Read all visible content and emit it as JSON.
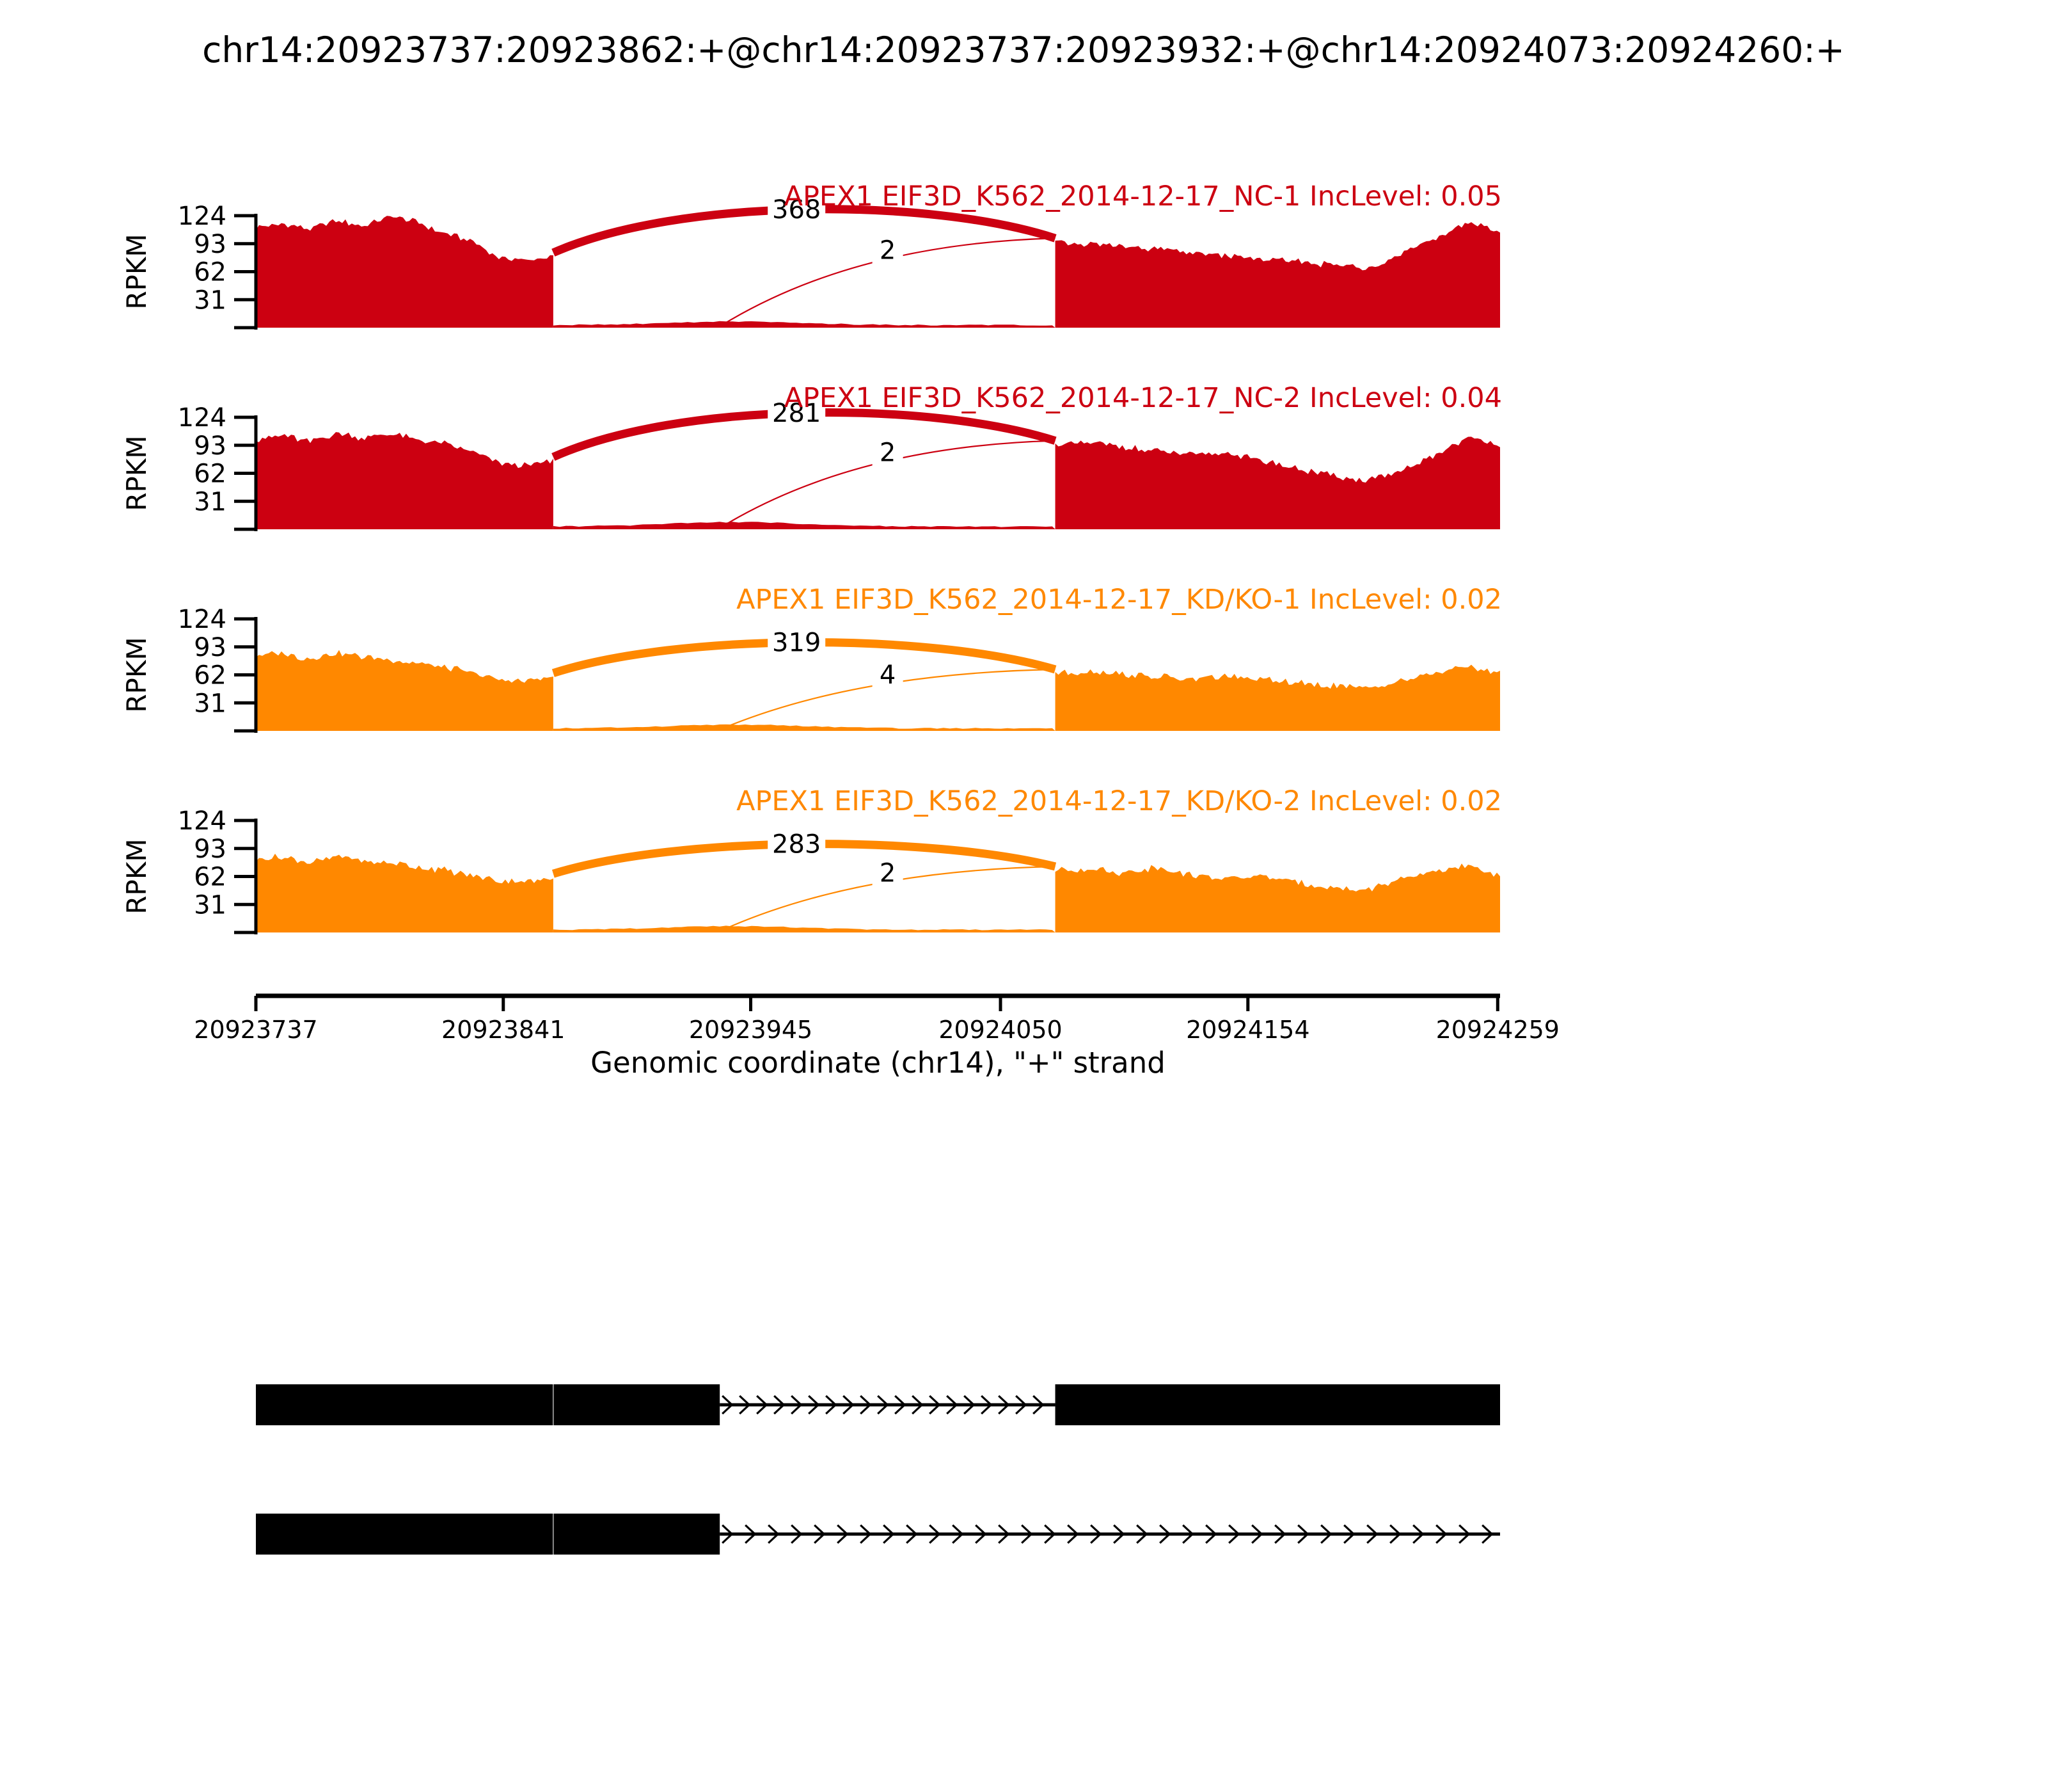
{
  "title": "chr14:20923737:20923862:+@chr14:20923737:20923932:+@chr14:20924073:20924260:+",
  "colors": {
    "sample_group_1": "#CC0011",
    "sample_group_2": "#FF8800",
    "gene_model": "#000000",
    "text": "#000000",
    "background": "#ffffff"
  },
  "y_axis": {
    "label": "RPKM",
    "tick_labels": [
      "124",
      "93",
      "62",
      "31"
    ],
    "tick_values": [
      124,
      93,
      62,
      31
    ],
    "max": 124
  },
  "x_axis": {
    "label": "Genomic coordinate (chr14), \"+\" strand",
    "tick_labels": [
      "20923737",
      "20923841",
      "20923945",
      "20924050",
      "20924154",
      "20924259"
    ],
    "tick_values": [
      20923737,
      20923841,
      20923945,
      20924050,
      20924154,
      20924259
    ],
    "domain": [
      20923737,
      20924260
    ]
  },
  "chart_data": {
    "type": "sashimi",
    "region": {
      "chrom": "chr14",
      "start": 20923737,
      "end": 20924260,
      "strand": "+"
    },
    "event_coordinates": {
      "short_exon": [
        20923737,
        20923862
      ],
      "long_exon": [
        20923737,
        20923932
      ],
      "downstream_exon": [
        20924073,
        20924260
      ]
    },
    "exon_seam_coordinate": 20923862,
    "tracks": [
      {
        "sample": "NC-1",
        "title": "APEX1 EIF3D_K562_2014-12-17_NC-1 IncLevel: 0.05",
        "inc_level": "0.05",
        "color": "#CC0011",
        "junctions": [
          {
            "count": "368",
            "from": 20923862,
            "to": 20924073,
            "position": "top"
          },
          {
            "count": "2",
            "from": 20923932,
            "to": 20924073,
            "position": "floor"
          }
        ],
        "arc_peak_rpkm": 131,
        "coverage_left": [
          111,
          115,
          109,
          118,
          113,
          124,
          117,
          104,
          96,
          78,
          74,
          79
        ],
        "coverage_right": [
          95,
          92,
          90,
          87,
          83,
          80,
          76,
          73,
          70,
          66,
          79,
          97,
          116,
          107
        ],
        "intron_floor_rpkm": 2.2,
        "intron_bump_rpkm": 4,
        "seed": 1
      },
      {
        "sample": "NC-2",
        "title": "APEX1 EIF3D_K562_2014-12-17_NC-2 IncLevel: 0.04",
        "inc_level": "0.04",
        "color": "#CC0011",
        "junctions": [
          {
            "count": "281",
            "from": 20923862,
            "to": 20924073,
            "position": "top"
          },
          {
            "count": "2",
            "from": 20923932,
            "to": 20924073,
            "position": "floor"
          }
        ],
        "arc_peak_rpkm": 129,
        "coverage_left": [
          100,
          104,
          97,
          107,
          101,
          106,
          99,
          95,
          86,
          74,
          70,
          76
        ],
        "coverage_right": [
          94,
          96,
          91,
          86,
          82,
          85,
          76,
          68,
          60,
          54,
          62,
          80,
          101,
          95
        ],
        "intron_floor_rpkm": 2.4,
        "intron_bump_rpkm": 5,
        "seed": 2
      },
      {
        "sample": "KD/KO-1",
        "title": "APEX1 EIF3D_K562_2014-12-17_KD/KO-1 IncLevel: 0.02",
        "inc_level": "0.02",
        "color": "#FF8800",
        "junctions": [
          {
            "count": "319",
            "from": 20923862,
            "to": 20924073,
            "position": "top"
          },
          {
            "count": "4",
            "from": 20923932,
            "to": 20924073,
            "position": "floor"
          }
        ],
        "arc_peak_rpkm": 98,
        "coverage_left": [
          83,
          86,
          80,
          87,
          82,
          79,
          75,
          71,
          64,
          57,
          55,
          60
        ],
        "coverage_right": [
          64,
          66,
          63,
          60,
          57,
          61,
          57,
          53,
          50,
          47,
          55,
          63,
          71,
          65
        ],
        "intron_floor_rpkm": 2.2,
        "intron_bump_rpkm": 4,
        "seed": 3
      },
      {
        "sample": "KD/KO-2",
        "title": "APEX1 EIF3D_K562_2014-12-17_KD/KO-2 IncLevel: 0.02",
        "inc_level": "0.02",
        "color": "#FF8800",
        "junctions": [
          {
            "count": "283",
            "from": 20923862,
            "to": 20924073,
            "position": "top"
          },
          {
            "count": "2",
            "from": 20923932,
            "to": 20924073,
            "position": "floor"
          }
        ],
        "arc_peak_rpkm": 98,
        "coverage_left": [
          81,
          84,
          77,
          85,
          79,
          77,
          73,
          69,
          63,
          58,
          56,
          61
        ],
        "coverage_right": [
          69,
          71,
          66,
          73,
          63,
          60,
          63,
          56,
          50,
          47,
          57,
          67,
          73,
          64
        ],
        "intron_floor_rpkm": 2.4,
        "intron_bump_rpkm": 4,
        "seed": 4
      }
    ],
    "gene_models": [
      {
        "exons": [
          [
            20923737,
            20923932
          ],
          [
            20924073,
            20924260
          ]
        ],
        "arrow_line": [
          20923932,
          20924073
        ]
      },
      {
        "exons": [
          [
            20923737,
            20923932
          ]
        ],
        "arrow_line": [
          20923932,
          20924260
        ]
      }
    ]
  }
}
